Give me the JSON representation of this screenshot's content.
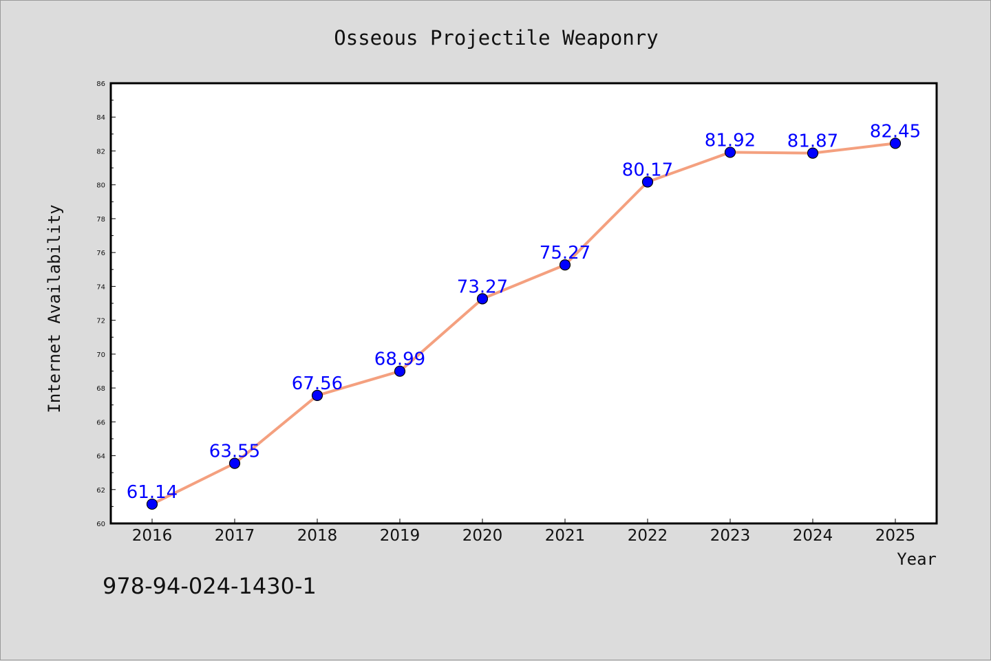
{
  "colors": {
    "background": "#dcdcdc",
    "plot_background": "#ffffff",
    "line": "#f4a07f",
    "marker": "#0000ff",
    "data_label": "#0000ff",
    "axis": "#000000"
  },
  "isbn": "978-94-024-1430-1",
  "chart_data": {
    "type": "line",
    "title": "Osseous Projectile Weaponry",
    "xlabel": "Year",
    "ylabel": "Internet Availability",
    "categories": [
      "2016",
      "2017",
      "2018",
      "2019",
      "2020",
      "2021",
      "2022",
      "2023",
      "2024",
      "2025"
    ],
    "series": [
      {
        "values": [
          61.14,
          63.55,
          67.56,
          68.99,
          73.27,
          75.27,
          80.17,
          81.92,
          81.87,
          82.45
        ],
        "labels": [
          "61.14",
          "63.55",
          "67.56",
          "68.99",
          "73.27",
          "75.27",
          "80.17",
          "81.92",
          "81.87",
          "82.45"
        ]
      }
    ],
    "ylim": [
      60,
      86
    ],
    "yticks": [
      "60",
      "62",
      "64",
      "66",
      "68",
      "70",
      "72",
      "74",
      "76",
      "78",
      "80",
      "82",
      "84",
      "86"
    ],
    "grid": false,
    "legend": "none"
  }
}
